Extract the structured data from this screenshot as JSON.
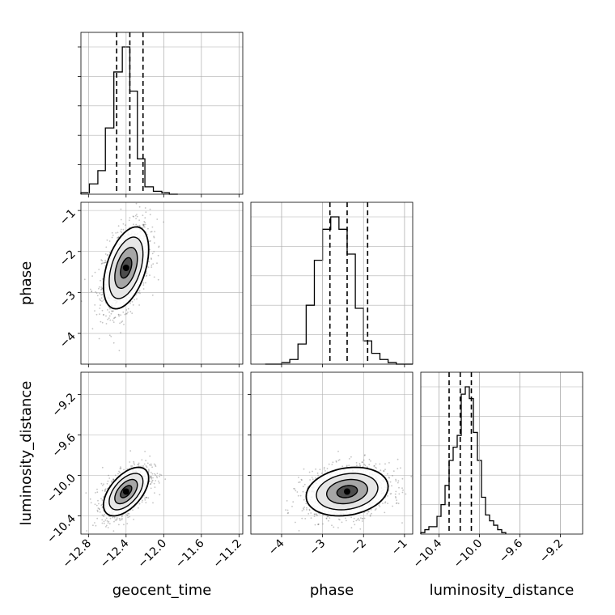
{
  "chart_data": {
    "type": "corner",
    "parameters": [
      "geocent_time",
      "phase",
      "luminosity_distance"
    ],
    "axis_labels": [
      "geocent_time",
      "phase",
      "luminosity_distance"
    ],
    "grid": true,
    "colors": {
      "line": "#000000",
      "grid": "#b0b0b0",
      "samples": "#555555"
    },
    "ranges": [
      [
        -12.88,
        -11.16
      ],
      [
        -4.75,
        -0.8
      ],
      [
        -10.58,
        -8.98
      ]
    ],
    "ticks": [
      {
        "values": [
          -12.8,
          -12.4,
          -12.0,
          -11.6,
          -11.2
        ],
        "labels": [
          "−12.8",
          "−12.4",
          "−12.0",
          "−11.6",
          "−11.2"
        ]
      },
      {
        "values": [
          -4,
          -3,
          -2,
          -1
        ],
        "labels": [
          "−4",
          "−3",
          "−2",
          "−1"
        ]
      },
      {
        "values": [
          -10.4,
          -10.0,
          -9.6,
          -9.2
        ],
        "labels": [
          "−10.4",
          "−10.0",
          "−9.6",
          "−9.2"
        ]
      }
    ],
    "histograms": [
      {
        "param": "geocent_time",
        "bin_edges": [
          -12.88,
          -12.79,
          -12.7,
          -12.62,
          -12.53,
          -12.44,
          -12.36,
          -12.28,
          -12.2,
          -12.11,
          -12.02,
          -11.94,
          -11.85
        ],
        "counts": [
          1,
          7,
          16,
          45,
          83,
          100,
          70,
          24,
          5,
          2,
          1,
          0
        ],
        "quantiles": [
          -12.5,
          -12.36,
          -12.22
        ]
      },
      {
        "param": "phase",
        "bin_edges": [
          -4.4,
          -4.2,
          -4.0,
          -3.8,
          -3.6,
          -3.4,
          -3.2,
          -3.0,
          -2.8,
          -2.6,
          -2.4,
          -2.2,
          -2.0,
          -1.8,
          -1.6,
          -1.4,
          -1.2,
          -1.0,
          -0.8
        ],
        "counts": [
          0,
          0,
          1,
          3,
          13,
          38,
          67,
          87,
          95,
          87,
          71,
          36,
          15,
          7,
          3,
          1,
          0,
          0
        ],
        "quantiles": [
          -2.82,
          -2.4,
          -1.9
        ]
      },
      {
        "param": "luminosity_distance",
        "bin_edges": [
          -10.58,
          -10.54,
          -10.5,
          -10.46,
          -10.42,
          -10.38,
          -10.34,
          -10.3,
          -10.26,
          -10.22,
          -10.18,
          -10.14,
          -10.1,
          -10.06,
          -10.02,
          -9.98,
          -9.94,
          -9.9,
          -9.86,
          -9.82,
          -9.78,
          -9.74
        ],
        "counts": [
          1,
          3,
          5,
          5,
          12,
          20,
          33,
          50,
          59,
          67,
          95,
          100,
          92,
          69,
          50,
          25,
          13,
          9,
          6,
          3,
          1
        ],
        "quantiles": [
          -10.3,
          -10.19,
          -10.08
        ]
      }
    ],
    "contours": [
      {
        "x_param": "geocent_time",
        "y_param": "phase",
        "center": [
          -12.4,
          -2.4
        ],
        "sigma": [
          0.12,
          0.5
        ],
        "rho": 0.45,
        "levels": [
          0.5,
          1.0,
          1.5,
          2.0
        ],
        "samples": 1300
      },
      {
        "x_param": "geocent_time",
        "y_param": "luminosity_distance",
        "center": [
          -12.4,
          -10.16
        ],
        "sigma": [
          0.12,
          0.12
        ],
        "rho": 0.55,
        "levels": [
          0.5,
          1.0,
          1.5,
          2.0
        ],
        "samples": 1300
      },
      {
        "x_param": "phase",
        "y_param": "luminosity_distance",
        "center": [
          -2.4,
          -10.16
        ],
        "sigma": [
          0.5,
          0.12
        ],
        "rho": 0.2,
        "levels": [
          0.5,
          1.0,
          1.5,
          2.0
        ],
        "samples": 1300
      }
    ]
  }
}
